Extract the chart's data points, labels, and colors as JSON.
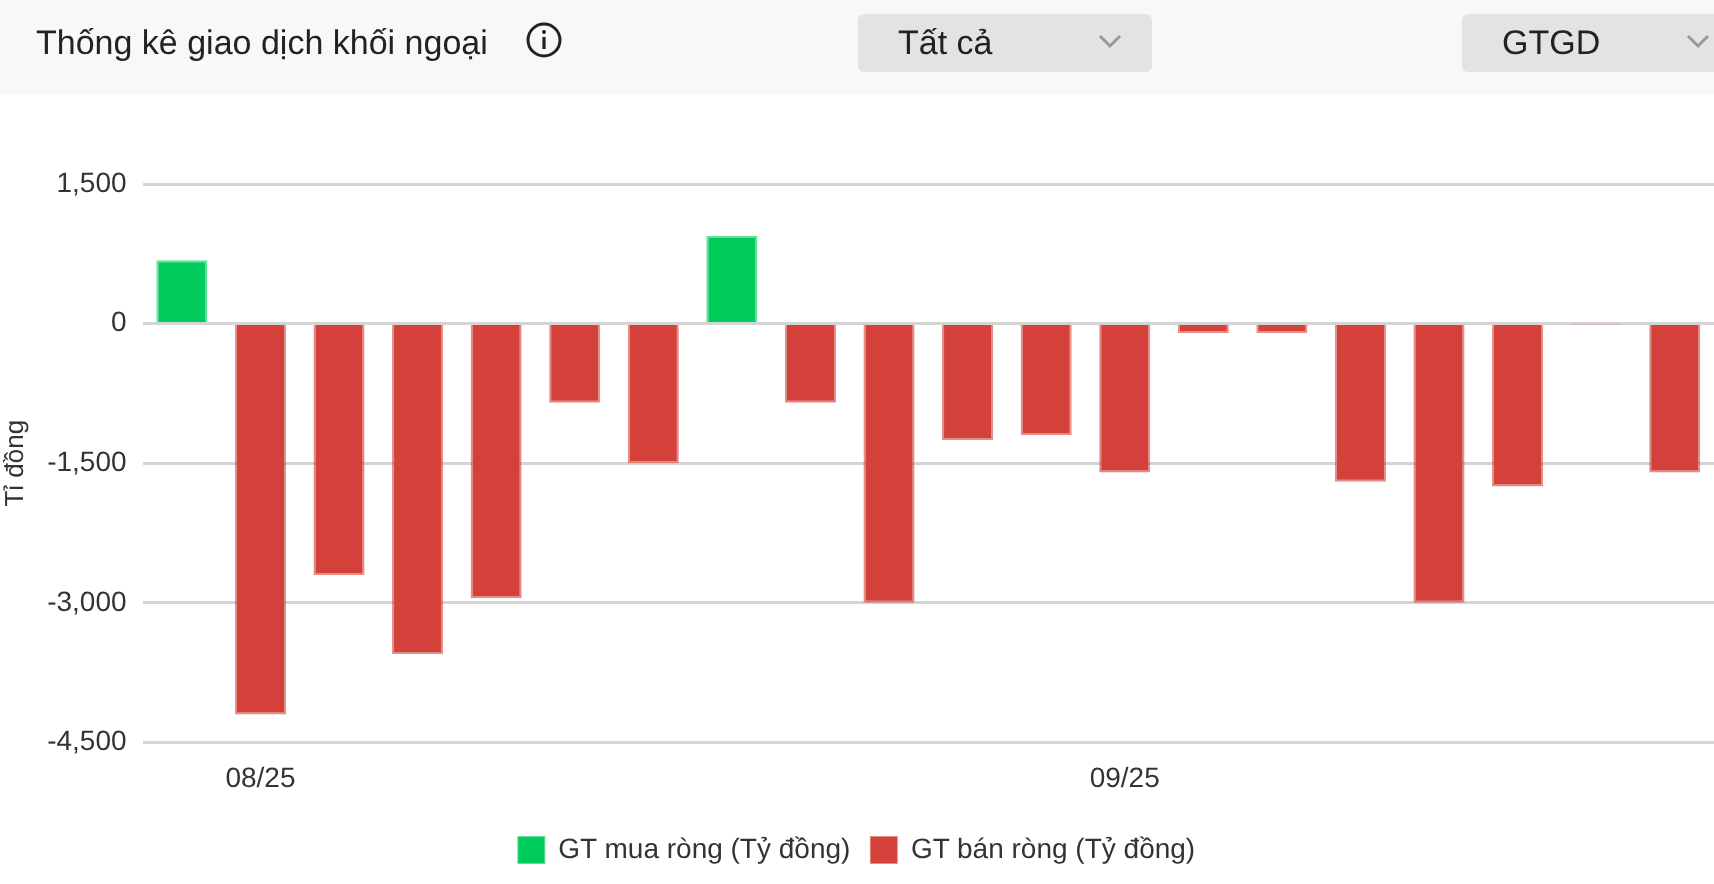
{
  "chart_data": {
    "type": "bar",
    "title": "Thống kê giao dịch khối ngoại",
    "ylabel": "Tỉ đồng",
    "annotations": [
      "Tất cả",
      "GTGD"
    ],
    "categories": [
      null,
      "08/25",
      null,
      null,
      null,
      null,
      null,
      null,
      null,
      null,
      null,
      null,
      "09/25",
      null,
      null,
      null,
      null,
      null,
      null,
      null
    ],
    "series": [
      {
        "name": "GT mua ròng (Tỷ đồng)",
        "color": "#00cc5c",
        "values": [
          680,
          null,
          null,
          null,
          null,
          null,
          null,
          940,
          null,
          null,
          null,
          null,
          null,
          null,
          null,
          null,
          null,
          null,
          null,
          null
        ]
      },
      {
        "name": "GT bán ròng (Tỷ đồng)",
        "color": "#d4403a",
        "values": [
          null,
          -4200,
          -2700,
          -3550,
          -2950,
          -850,
          -1500,
          null,
          -850,
          -3000,
          -1250,
          -1200,
          -1600,
          -100,
          -100,
          -1700,
          -3000,
          -1750,
          -10,
          -1600
        ]
      }
    ],
    "ylim": [
      -4500,
      1500
    ],
    "yticks": [
      {
        "value": -4500,
        "label": "-4,500"
      },
      {
        "value": -3000,
        "label": "-3,000"
      },
      {
        "value": -1500,
        "label": "-1,500"
      },
      0,
      {
        "value": 1500,
        "label": "1,500"
      }
    ],
    "grid": "y",
    "legend": "bottom"
  }
}
